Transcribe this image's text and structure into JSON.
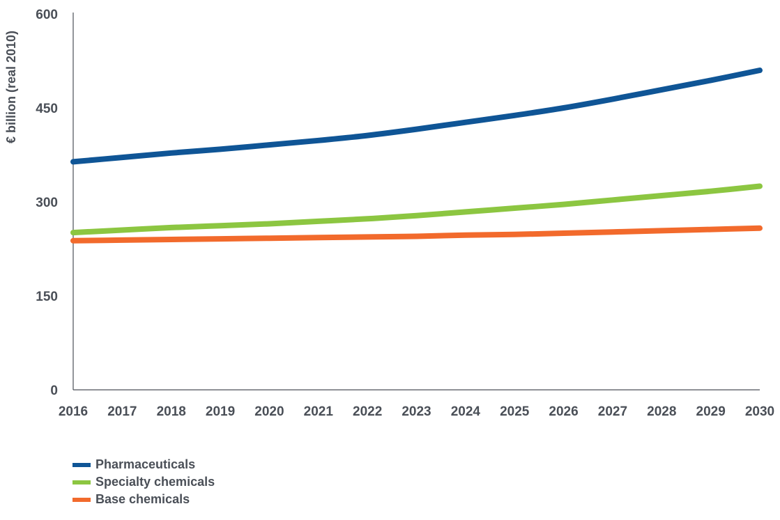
{
  "chart_data": {
    "type": "line",
    "title": "",
    "xlabel": "",
    "ylabel": "€ billion (real 2010)",
    "x": [
      2016,
      2017,
      2018,
      2019,
      2020,
      2021,
      2022,
      2023,
      2024,
      2025,
      2026,
      2027,
      2028,
      2029,
      2030
    ],
    "x_tick_labels": [
      "2016",
      "2017",
      "2018",
      "2019",
      "2020",
      "2021",
      "2022",
      "2023",
      "2024",
      "2025",
      "2026",
      "2027",
      "2028",
      "2029",
      "2030"
    ],
    "ylim": [
      0,
      600
    ],
    "y_ticks": [
      0,
      150,
      300,
      450,
      600
    ],
    "y_tick_labels": [
      "0",
      "150",
      "300",
      "450",
      "600"
    ],
    "grid": false,
    "legend_position": "bottom-left",
    "series": [
      {
        "name": "Pharmaceuticals",
        "color": "#0f5596",
        "values": [
          364,
          371,
          378,
          384,
          391,
          398,
          406,
          416,
          427,
          438,
          450,
          464,
          479,
          494,
          510
        ]
      },
      {
        "name": "Specialty chemicals",
        "color": "#8cc641",
        "values": [
          251,
          255,
          259,
          262,
          265,
          269,
          273,
          278,
          284,
          290,
          296,
          303,
          310,
          317,
          325
        ]
      },
      {
        "name": "Base chemicals",
        "color": "#f26a2c",
        "values": [
          238,
          239,
          240,
          241,
          242,
          243,
          244,
          245,
          247,
          248,
          250,
          252,
          254,
          256,
          258
        ]
      }
    ]
  }
}
